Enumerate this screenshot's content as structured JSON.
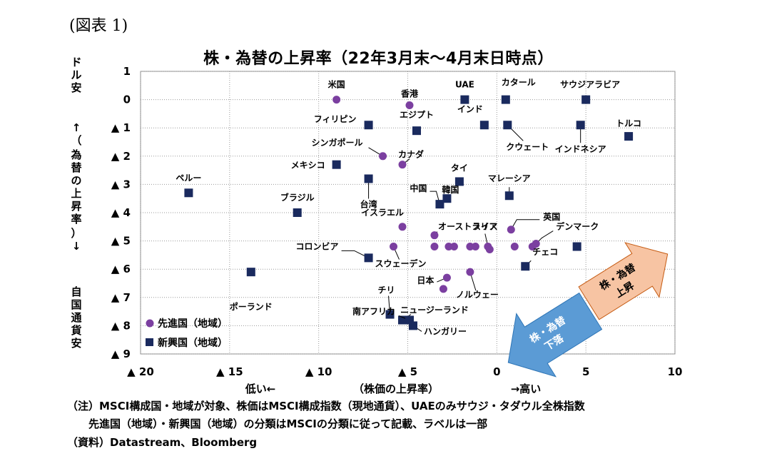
{
  "figure_label": "(図表 1)",
  "chart_data": {
    "type": "scatter",
    "title": "株・為替の上昇率（22年3月末～4月末日時点）",
    "xlabel": "（株価の上昇率）",
    "x_low_label": "低い←",
    "x_high_label": "→高い",
    "ylabel_top": "ドル安",
    "ylabel_arrow_up": "↑（",
    "ylabel_middle": "為替の上昇率",
    "ylabel_arrow_down": "）↓",
    "ylabel_bottom": "自国通貨安",
    "xlim": [
      -20,
      10
    ],
    "ylim": [
      -9,
      1
    ],
    "x_ticks": [
      {
        "value": -20,
        "label": "▲ 20"
      },
      {
        "value": -15,
        "label": "▲ 15"
      },
      {
        "value": -10,
        "label": "▲ 10"
      },
      {
        "value": -5,
        "label": "▲ 5"
      },
      {
        "value": 0,
        "label": "0"
      },
      {
        "value": 5,
        "label": "5"
      },
      {
        "value": 10,
        "label": "10"
      }
    ],
    "y_ticks": [
      {
        "value": 1,
        "label": "1"
      },
      {
        "value": 0,
        "label": "0"
      },
      {
        "value": -1,
        "label": "▲ 1"
      },
      {
        "value": -2,
        "label": "▲ 2"
      },
      {
        "value": -3,
        "label": "▲ 3"
      },
      {
        "value": -4,
        "label": "▲ 4"
      },
      {
        "value": -5,
        "label": "▲ 5"
      },
      {
        "value": -6,
        "label": "▲ 6"
      },
      {
        "value": -7,
        "label": "▲ 7"
      },
      {
        "value": -8,
        "label": "▲ 8"
      },
      {
        "value": -9,
        "label": "▲ 9"
      }
    ],
    "grid": "dotted",
    "legend_position": "bottom-left",
    "colors": {
      "developed": "#7b3fa0",
      "emerging": "#1a2a5e",
      "arrow_up": "#f7c4a3",
      "arrow_down": "#5b9bd5"
    },
    "series": [
      {
        "name": "先進国（地域）",
        "marker": "circle",
        "points": [
          {
            "x": -9.0,
            "y": 0.0,
            "label": "米国"
          },
          {
            "x": -4.9,
            "y": -0.2,
            "label": "香港"
          },
          {
            "x": -6.4,
            "y": -2.0,
            "label": "シンガポール"
          },
          {
            "x": -5.3,
            "y": -2.3,
            "label": "カナダ"
          },
          {
            "x": -5.3,
            "y": -4.5,
            "label": "イスラエル"
          },
          {
            "x": -3.5,
            "y": -4.8,
            "label": "オーストラリア"
          },
          {
            "x": -5.8,
            "y": -5.2,
            "label": "スウェーデン"
          },
          {
            "x": -3.5,
            "y": -5.2,
            "label": ""
          },
          {
            "x": -2.7,
            "y": -5.2,
            "label": ""
          },
          {
            "x": -2.4,
            "y": -5.2,
            "label": ""
          },
          {
            "x": -1.5,
            "y": -5.2,
            "label": ""
          },
          {
            "x": -1.2,
            "y": -5.2,
            "label": ""
          },
          {
            "x": -0.5,
            "y": -5.2,
            "label": "スイス"
          },
          {
            "x": -0.4,
            "y": -5.3,
            "label": ""
          },
          {
            "x": 0.8,
            "y": -4.6,
            "label": "英国"
          },
          {
            "x": 1.0,
            "y": -5.2,
            "label": ""
          },
          {
            "x": 2.0,
            "y": -5.2,
            "label": ""
          },
          {
            "x": 2.2,
            "y": -5.1,
            "label": "デンマーク"
          },
          {
            "x": -1.5,
            "y": -6.1,
            "label": "ノルウェー"
          },
          {
            "x": -2.8,
            "y": -6.3,
            "label": "日本"
          },
          {
            "x": -3.0,
            "y": -6.7,
            "label": ""
          }
        ]
      },
      {
        "name": "新興国（地域）",
        "marker": "square",
        "points": [
          {
            "x": -1.8,
            "y": 0.0,
            "label": "UAE"
          },
          {
            "x": 0.5,
            "y": 0.0,
            "label": "カタール"
          },
          {
            "x": 5.0,
            "y": 0.0,
            "label": "サウジアラビア"
          },
          {
            "x": -7.2,
            "y": -0.9,
            "label": "フィリピン"
          },
          {
            "x": -4.5,
            "y": -1.1,
            "label": "エジプト"
          },
          {
            "x": -0.7,
            "y": -0.9,
            "label": "インド"
          },
          {
            "x": 0.6,
            "y": -0.9,
            "label": "クウェート"
          },
          {
            "x": 4.7,
            "y": -0.9,
            "label": "インドネシア"
          },
          {
            "x": 7.4,
            "y": -1.3,
            "label": "トルコ"
          },
          {
            "x": -9.0,
            "y": -2.3,
            "label": "メキシコ"
          },
          {
            "x": -7.2,
            "y": -2.8,
            "label": "台湾"
          },
          {
            "x": -17.3,
            "y": -3.3,
            "label": "ペルー"
          },
          {
            "x": -2.1,
            "y": -2.9,
            "label": "タイ"
          },
          {
            "x": -2.8,
            "y": -3.5,
            "label": "韓国"
          },
          {
            "x": -3.2,
            "y": -3.7,
            "label": "中国"
          },
          {
            "x": 0.7,
            "y": -3.4,
            "label": "マレーシア"
          },
          {
            "x": -11.2,
            "y": -4.0,
            "label": "ブラジル"
          },
          {
            "x": -7.2,
            "y": -5.6,
            "label": "コロンビア"
          },
          {
            "x": 4.5,
            "y": -5.2,
            "label": ""
          },
          {
            "x": 1.6,
            "y": -5.9,
            "label": "チェコ"
          },
          {
            "x": -13.8,
            "y": -6.1,
            "label": "ポーランド"
          },
          {
            "x": -6.0,
            "y": -7.6,
            "label": "チリ"
          },
          {
            "x": -5.3,
            "y": -7.8,
            "label": "ニュージーランド"
          },
          {
            "x": -4.7,
            "y": -8.0,
            "label": "ハンガリー"
          },
          {
            "x": -4.9,
            "y": -7.8,
            "label": "南アフリカ"
          }
        ]
      }
    ],
    "annotations": [
      {
        "text": "株・為替上昇",
        "direction": "up-right"
      },
      {
        "text": "株・為替下落",
        "direction": "down-left"
      }
    ]
  },
  "notes": [
    "（注）MSCI構成国・地域が対象、株価はMSCI構成指数（現地通貨）、UAEのみサウジ・タダウル全株指数",
    "　　先進国（地域）・新興国（地域）の分類はMSCIの分類に従って記載、ラベルは一部",
    "（資料）Datastream、Bloomberg"
  ]
}
